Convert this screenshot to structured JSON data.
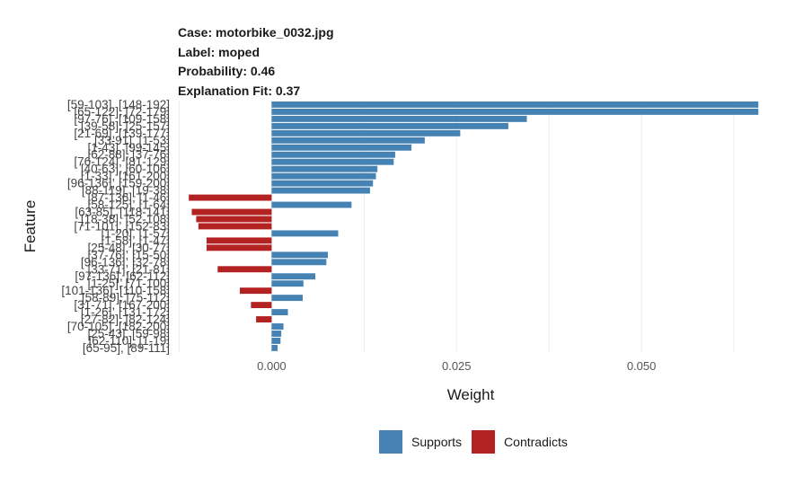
{
  "header": {
    "case": "Case: motorbike_0032.jpg",
    "label": "Label: moped",
    "probability": "Probability: 0.46",
    "fit": "Explanation Fit: 0.37"
  },
  "legend": {
    "supports": "Supports",
    "contradicts": "Contradicts"
  },
  "colors": {
    "supports": "#4682b4",
    "contradicts": "#b22222",
    "grid": "#ebebeb"
  },
  "chart_data": {
    "type": "bar",
    "orientation": "horizontal",
    "xlabel": "Weight",
    "ylabel": "Feature",
    "xlim": [
      -0.0128,
      0.0665
    ],
    "xticks": [
      "0.000",
      "0.025",
      "0.050"
    ],
    "xtick_values": [
      0.0,
      0.025,
      0.05
    ],
    "grid": true,
    "legend_position": "bottom",
    "categories": [
      "[59-103], [148-192]",
      "[65-122], [72-179]",
      "[97-76], [109-158]",
      "[39-58], [25-157]",
      "[21-69], [139-177]",
      "[33-91], [1-53]",
      "[1-43], [99-145]",
      "[62-88], [37-76]",
      "[76-124], [81-129]",
      "[40-63], [60-106]",
      "[1-33], [161-200]",
      "[96-136], [159-200]",
      "[88-119], [19-38]",
      "[87-136], [1-46]",
      "[58-125], [1-64]",
      "[63-85], [118-141]",
      "[18-38], [52-108]",
      "[71-101], [152-83]",
      "[1-20], [1-57]",
      "[1-58], [1-47]",
      "[25-48], [30-77]",
      "[37-76], [15-50]",
      "[96-136], [32-78]",
      "[33-71], [21-81]",
      "[97-136], [62-112]",
      "[1-25], [71-100]",
      "[101-136], [110-158]",
      "[58-89], [75-112]",
      "[31-71], [167-200]",
      "[1-26], [131-172]",
      "[27-82], [82-124]",
      "[70-105], [182-200]",
      "[25-43], [59-98]",
      "[62-110], [1-19]",
      "[65-95], [89-111]"
    ],
    "values": [
      0.0658,
      0.0658,
      0.0345,
      0.032,
      0.0255,
      0.0207,
      0.0189,
      0.0167,
      0.0165,
      0.0143,
      0.0141,
      0.0137,
      0.0133,
      -0.0112,
      0.0108,
      -0.0108,
      -0.0102,
      -0.0099,
      0.009,
      -0.0088,
      -0.0088,
      0.0076,
      0.0074,
      -0.0073,
      0.0059,
      0.0043,
      -0.0043,
      0.0042,
      -0.0028,
      0.0022,
      -0.0021,
      0.0016,
      0.0013,
      0.0012,
      0.0008
    ]
  }
}
